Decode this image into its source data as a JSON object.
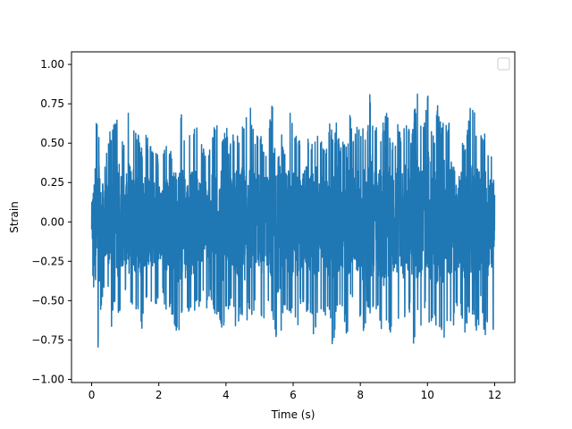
{
  "chart_data": {
    "type": "line",
    "title": "",
    "xlabel": "Time (s)",
    "ylabel": "Strain",
    "xlim": [
      -0.6,
      12.6
    ],
    "ylim": [
      -1.02,
      1.08
    ],
    "x_ticks": [
      0,
      2,
      4,
      6,
      8,
      10,
      12
    ],
    "x_tick_labels": [
      "0",
      "2",
      "4",
      "6",
      "8",
      "10",
      "12"
    ],
    "y_ticks": [
      -1.0,
      -0.75,
      -0.5,
      -0.25,
      0.0,
      0.25,
      0.5,
      0.75,
      1.0
    ],
    "y_tick_labels": [
      "−1.00",
      "−0.75",
      "−0.50",
      "−0.25",
      "0.00",
      "0.25",
      "0.50",
      "0.75",
      "1.00"
    ],
    "grid": false,
    "legend": {
      "placement": "top-right",
      "entries": []
    },
    "series": [
      {
        "color": "#1f77b4",
        "x": [
          0,
          0.1,
          0.2,
          0.3,
          0.4,
          0.5,
          0.6,
          0.7,
          0.8,
          0.9,
          1.0,
          1.1,
          1.2,
          1.3,
          1.4,
          1.5,
          1.6,
          1.7,
          1.8,
          1.9,
          2.0,
          2.1,
          2.2,
          2.3,
          2.4,
          2.5,
          2.6,
          2.7,
          2.8,
          2.9,
          3.0,
          3.1,
          3.2,
          3.3,
          3.4,
          3.5,
          3.6,
          3.7,
          3.8,
          3.9,
          4.0,
          4.1,
          4.2,
          4.3,
          4.4,
          4.5,
          4.6,
          4.7,
          4.8,
          4.9,
          5.0,
          5.1,
          5.2,
          5.3,
          5.4,
          5.5,
          5.6,
          5.7,
          5.8,
          5.9,
          6.0,
          6.1,
          6.2,
          6.3,
          6.4,
          6.5,
          6.6,
          6.7,
          6.8,
          6.9,
          7.0,
          7.1,
          7.2,
          7.3,
          7.4,
          7.5,
          7.6,
          7.7,
          7.8,
          7.9,
          8.0,
          8.1,
          8.2,
          8.3,
          8.4,
          8.5,
          8.6,
          8.7,
          8.8,
          8.9,
          9.0,
          9.1,
          9.2,
          9.3,
          9.4,
          9.5,
          9.6,
          9.7,
          9.8,
          9.9,
          10.0,
          10.1,
          10.2,
          10.3,
          10.4,
          10.5,
          10.6,
          10.7,
          10.8,
          10.9,
          11.0,
          11.1,
          11.2,
          11.3,
          11.4,
          11.5,
          11.6,
          11.7,
          11.8,
          11.9,
          12.0
        ],
        "y_max": [
          0.2,
          0.7,
          0.62,
          0.45,
          0.38,
          0.55,
          0.6,
          0.65,
          0.8,
          0.58,
          0.45,
          0.8,
          0.72,
          0.62,
          0.55,
          0.48,
          0.58,
          0.52,
          0.47,
          0.45,
          0.42,
          0.44,
          0.5,
          0.44,
          0.46,
          0.55,
          0.64,
          0.8,
          0.45,
          0.58,
          0.52,
          0.67,
          0.47,
          0.5,
          0.48,
          0.45,
          0.56,
          0.7,
          0.53,
          0.55,
          0.64,
          0.46,
          0.6,
          0.6,
          0.51,
          0.64,
          0.67,
          0.8,
          0.6,
          0.55,
          0.62,
          0.49,
          0.45,
          0.7,
          0.8,
          1.0,
          0.7,
          0.46,
          0.54,
          0.75,
          0.58,
          0.55,
          0.54,
          0.6,
          0.7,
          0.44,
          0.56,
          0.62,
          0.57,
          0.49,
          0.47,
          0.66,
          0.51,
          0.66,
          0.51,
          0.54,
          0.46,
          0.76,
          0.54,
          0.63,
          0.57,
          0.66,
          0.55,
          0.87,
          0.62,
          0.66,
          0.54,
          0.67,
          0.71,
          0.55,
          0.48,
          0.66,
          0.54,
          0.67,
          0.65,
          0.52,
          0.7,
          0.82,
          0.7,
          0.62,
          0.93,
          0.7,
          0.55,
          0.74,
          0.62,
          0.66,
          0.63,
          0.76,
          0.6,
          0.48,
          0.57,
          0.47,
          0.67,
          0.75,
          0.7,
          0.55,
          0.55,
          0.57,
          0.45,
          0.42,
          0.4
        ],
        "y_min": [
          -0.22,
          -0.62,
          -0.82,
          -0.5,
          -0.42,
          -0.48,
          -0.68,
          -0.55,
          -0.62,
          -0.5,
          -0.44,
          -0.5,
          -0.55,
          -0.56,
          -0.6,
          -0.7,
          -0.48,
          -0.55,
          -0.6,
          -0.57,
          -0.52,
          -0.44,
          -0.6,
          -0.55,
          -0.68,
          -0.7,
          -0.72,
          -0.6,
          -0.73,
          -0.56,
          -0.68,
          -0.53,
          -0.56,
          -0.43,
          -0.6,
          -0.48,
          -0.52,
          -0.63,
          -0.6,
          -0.74,
          -0.6,
          -0.55,
          -0.48,
          -0.7,
          -0.62,
          -0.64,
          -0.68,
          -0.56,
          -0.65,
          -0.44,
          -0.55,
          -0.64,
          -0.58,
          -0.48,
          -0.65,
          -0.75,
          -0.85,
          -0.56,
          -0.63,
          -0.56,
          -0.62,
          -0.73,
          -0.56,
          -0.55,
          -0.57,
          -0.6,
          -0.72,
          -0.66,
          -0.56,
          -0.57,
          -0.61,
          -0.62,
          -0.9,
          -0.59,
          -0.59,
          -0.61,
          -0.75,
          -0.52,
          -0.56,
          -0.6,
          -0.61,
          -0.73,
          -0.58,
          -0.6,
          -0.59,
          -0.58,
          -0.69,
          -0.76,
          -0.61,
          -0.71,
          -0.57,
          -0.66,
          -0.55,
          -0.65,
          -0.56,
          -0.6,
          -0.88,
          -0.58,
          -0.67,
          -0.56,
          -0.61,
          -0.72,
          -0.56,
          -0.75,
          -0.7,
          -0.85,
          -0.68,
          -0.63,
          -0.67,
          -0.54,
          -0.59,
          -0.73,
          -0.62,
          -0.55,
          -0.68,
          -0.72,
          -0.48,
          -0.73,
          -0.7,
          -0.55,
          -0.8
        ]
      }
    ]
  }
}
